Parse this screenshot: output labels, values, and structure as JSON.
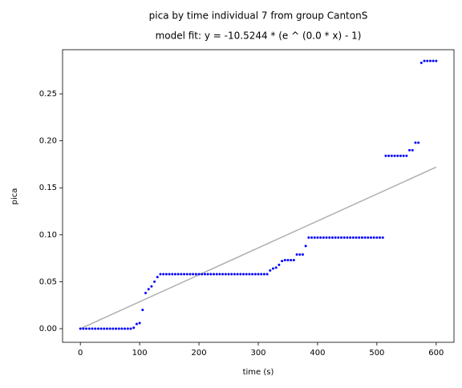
{
  "chart_data": {
    "type": "scatter",
    "title": "pica by time individual 7 from group CantonS",
    "subtitle": "model fit: y = -10.5244 * (e ^ (0.0 * x) - 1)",
    "xlabel": "time (s)",
    "ylabel": "pica",
    "xlim": [
      -30,
      630
    ],
    "ylim": [
      -0.0145,
      0.297
    ],
    "xticks": [
      0,
      100,
      200,
      300,
      400,
      500,
      600
    ],
    "yticks": [
      {
        "value": 0,
        "label": "0.00"
      },
      0.05,
      {
        "value": 0.1,
        "label": "0.10"
      },
      0.15,
      {
        "value": 0.2,
        "label": "0.20"
      },
      0.25
    ],
    "series": [
      {
        "kind": "points",
        "color": "#0000ff",
        "x": [
          0,
          5,
          10,
          15,
          20,
          25,
          30,
          35,
          40,
          45,
          50,
          55,
          60,
          65,
          70,
          75,
          80,
          85,
          90,
          95,
          100,
          105,
          110,
          115,
          120,
          125,
          130,
          135,
          140,
          145,
          150,
          155,
          160,
          165,
          170,
          175,
          180,
          185,
          190,
          195,
          200,
          205,
          210,
          215,
          220,
          225,
          230,
          235,
          240,
          245,
          250,
          255,
          260,
          265,
          270,
          275,
          280,
          285,
          290,
          295,
          300,
          305,
          310,
          315,
          320,
          325,
          330,
          335,
          340,
          345,
          350,
          355,
          360,
          365,
          370,
          375,
          380,
          385,
          390,
          395,
          400,
          405,
          410,
          415,
          420,
          425,
          430,
          435,
          440,
          445,
          450,
          455,
          460,
          465,
          470,
          475,
          480,
          485,
          490,
          495,
          500,
          505,
          510,
          515,
          520,
          525,
          530,
          535,
          540,
          545,
          550,
          555,
          560,
          565,
          570,
          575,
          580,
          585,
          590,
          595,
          600
        ],
        "values": [
          0,
          0,
          0,
          0,
          0,
          0,
          0,
          0,
          0,
          0,
          0,
          0,
          0,
          0,
          0,
          0,
          0,
          0,
          0.001,
          0.005,
          0.006,
          0.02,
          0.038,
          0.042,
          0.045,
          0.05,
          0.055,
          0.058,
          0.058,
          0.058,
          0.058,
          0.058,
          0.058,
          0.058,
          0.058,
          0.058,
          0.058,
          0.058,
          0.058,
          0.058,
          0.058,
          0.058,
          0.058,
          0.058,
          0.058,
          0.058,
          0.058,
          0.058,
          0.058,
          0.058,
          0.058,
          0.058,
          0.058,
          0.058,
          0.058,
          0.058,
          0.058,
          0.058,
          0.058,
          0.058,
          0.058,
          0.058,
          0.058,
          0.058,
          0.062,
          0.064,
          0.065,
          0.068,
          0.072,
          0.073,
          0.073,
          0.073,
          0.073,
          0.079,
          0.079,
          0.079,
          0.088,
          0.097,
          0.097,
          0.097,
          0.097,
          0.097,
          0.097,
          0.097,
          0.097,
          0.097,
          0.097,
          0.097,
          0.097,
          0.097,
          0.097,
          0.097,
          0.097,
          0.097,
          0.097,
          0.097,
          0.097,
          0.097,
          0.097,
          0.097,
          0.097,
          0.097,
          0.097,
          0.184,
          0.184,
          0.184,
          0.184,
          0.184,
          0.184,
          0.184,
          0.184,
          0.19,
          0.19,
          0.198,
          0.198,
          0.283,
          0.285,
          0.285,
          0.285,
          0.285,
          0.285
        ]
      },
      {
        "kind": "line",
        "color": "#b0b0b0",
        "x": [
          0,
          600
        ],
        "values": [
          0,
          0.172
        ]
      }
    ]
  }
}
